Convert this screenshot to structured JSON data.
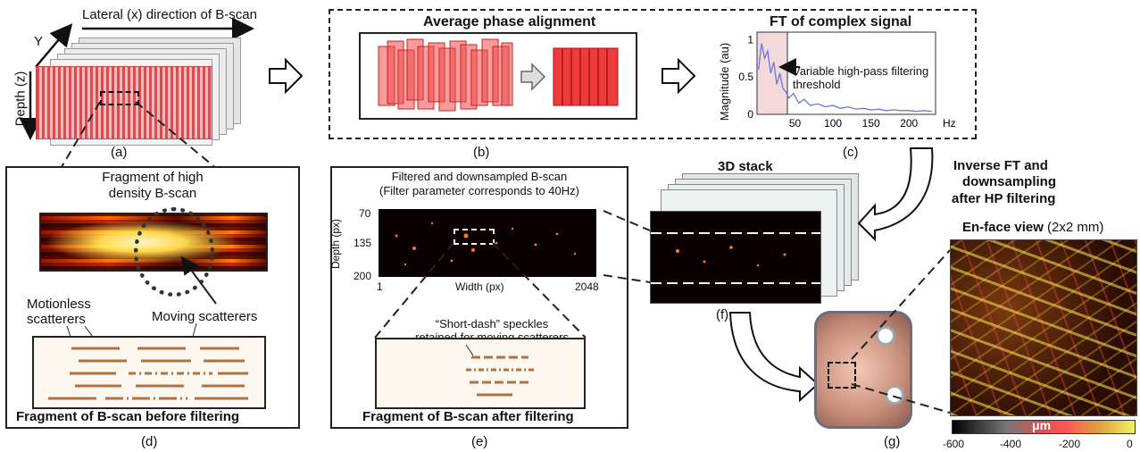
{
  "panel_a": {
    "lateral_label": "Lateral (x) direction of B-scan",
    "y_label": "Y",
    "depth_label": "Depth (z)",
    "caption": "(a)"
  },
  "panel_b": {
    "title": "Average phase alignment",
    "caption": "(b)"
  },
  "panel_c": {
    "title": "FT of complex signal",
    "ylabel": "Magnitude (au)",
    "annotation": "Variable high-pass filtering threshold",
    "caption": "(c)"
  },
  "panel_d": {
    "fragment_title": "Fragment of high density B-scan",
    "motionless_label": "Motionless scatterers",
    "moving_label": "Moving scatterers",
    "footer": "Fragment of B-scan before filtering",
    "caption": "(d)"
  },
  "panel_e": {
    "title_line1": "Filtered and downsampled B-scan",
    "title_line2": "(Filter parameter corresponds to 40Hz)",
    "ylabel": "Depth (px)",
    "xlabel": "Width (px)",
    "y_ticks": [
      "70",
      "135",
      "200"
    ],
    "x_ticks": [
      "1",
      "2048"
    ],
    "speckle_line1": "“Short-dash” speckles",
    "speckle_line2": "retained for moving scatterers",
    "footer": "Fragment of B-scan after filtering",
    "caption": "(e)"
  },
  "panel_f": {
    "title": "3D stack",
    "inverse_line1": "Inverse FT and",
    "inverse_line2": "downsampling",
    "inverse_line3": "after HP filtering",
    "caption": "(f)"
  },
  "panel_g": {
    "title": "En-face view",
    "size": "(2x2 mm)",
    "unit": "μm",
    "colorbar_ticks": [
      "-600",
      "-400",
      "-200",
      "0"
    ],
    "caption": "(g)"
  },
  "chart_data": {
    "type": "line",
    "title": "FT of complex signal",
    "xlabel": "Hz",
    "ylabel": "Magnitude (au)",
    "x_ticks": [
      "50",
      "100",
      "150",
      "200"
    ],
    "y_ticks": [
      "0",
      "0.5",
      "1"
    ],
    "xlim": [
      0,
      235
    ],
    "ylim": [
      0,
      1.1
    ],
    "threshold_hz": 40,
    "x": [
      2,
      6,
      10,
      14,
      18,
      22,
      26,
      30,
      34,
      38,
      42,
      48,
      55,
      62,
      70,
      80,
      90,
      100,
      110,
      120,
      130,
      140,
      150,
      160,
      170,
      180,
      190,
      200,
      210,
      220,
      230
    ],
    "values": [
      0.6,
      0.95,
      0.75,
      0.85,
      0.55,
      0.7,
      0.4,
      0.55,
      0.35,
      0.3,
      0.22,
      0.28,
      0.15,
      0.2,
      0.12,
      0.14,
      0.1,
      0.12,
      0.08,
      0.1,
      0.07,
      0.08,
      0.06,
      0.07,
      0.05,
      0.06,
      0.05,
      0.05,
      0.04,
      0.05,
      0.04
    ],
    "colors": {
      "line": "#6a78d8",
      "threshold_fill": "#f3d9d9"
    }
  }
}
